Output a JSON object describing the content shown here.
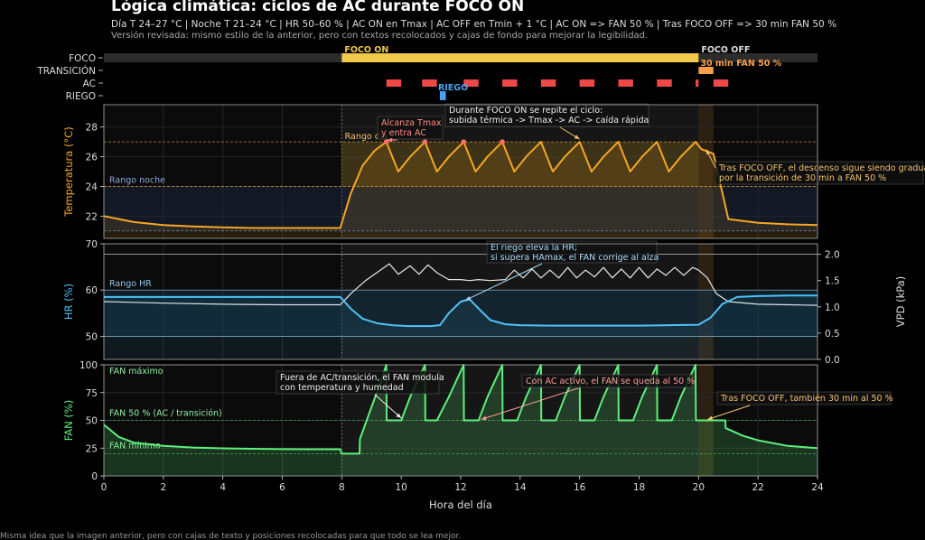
{
  "title": "Lógica climática: ciclos de AC durante FOCO ON",
  "subtitle": "Día T 24–27 °C | Noche T 21–24 °C | HR 50–60 % | AC ON en Tmax | AC OFF en Tmin + 1 °C | AC ON => FAN 50 % | Tras FOCO OFF => 30 min FAN 50 %",
  "subtitle2": "Versión revisada: mismo estilo de la anterior, pero con textos recolocados y cajas de fondo para mejorar la legibilidad.",
  "footer": "Misma idea que la imagen anterior, pero con cajas de texto y posiciones recolocadas para que todo se lea mejor.",
  "colors": {
    "temp": "#f5a623",
    "hr": "#4fc3f7",
    "vpd": "#e8e8e8",
    "fan": "#5cf07c",
    "foco": "#f0c84a",
    "transicion": "#f5a04a",
    "ac": "#f04848",
    "riego": "#4aa3f0",
    "tmax_dot": "#ff6f61"
  },
  "chart_data": [
    {
      "type": "timeline",
      "rows": [
        "FOCO",
        "TRANSICIÓN",
        "AC",
        "RIEGO"
      ],
      "labels": {
        "foco_on": "FOCO ON",
        "foco_off": "FOCO OFF",
        "transicion": "30 min FAN 50 %",
        "riego": "RIEGO"
      },
      "foco_on": [
        8,
        20
      ],
      "transicion": [
        20,
        20.5
      ],
      "ac": [
        [
          9.5,
          10.0
        ],
        [
          10.7,
          11.2
        ],
        [
          12.1,
          12.6
        ],
        [
          13.4,
          13.9
        ],
        [
          14.7,
          15.2
        ],
        [
          16.0,
          16.5
        ],
        [
          17.3,
          17.8
        ],
        [
          18.6,
          19.1
        ],
        [
          19.9,
          20.0
        ],
        [
          20.5,
          21.0
        ]
      ],
      "riego": [
        [
          11.3,
          11.5
        ]
      ]
    },
    {
      "type": "line",
      "ylabel": "Temperatura (°C)",
      "ylim": [
        20.5,
        29.5
      ],
      "yticks": [
        22,
        24,
        26,
        28
      ],
      "bands": [
        {
          "name": "Rango día",
          "range": [
            24,
            27
          ]
        },
        {
          "name": "Rango noche",
          "range": [
            21,
            24
          ]
        }
      ],
      "series": [
        {
          "x": [
            0,
            1,
            2,
            3,
            4,
            5,
            6,
            7,
            7.95,
            8.3,
            8.7,
            9.1,
            9.5,
            9.9,
            10.3,
            10.8,
            11.2,
            11.6,
            12.1,
            12.5,
            12.9,
            13.4,
            13.8,
            14.2,
            14.7,
            15.1,
            15.5,
            16.0,
            16.4,
            16.8,
            17.3,
            17.7,
            18.1,
            18.6,
            19.0,
            19.4,
            19.9,
            20.1,
            20.5,
            21.0,
            22,
            23,
            24
          ],
          "y": [
            22.0,
            21.6,
            21.4,
            21.3,
            21.25,
            21.2,
            21.2,
            21.2,
            21.2,
            23.5,
            25.4,
            26.4,
            27.0,
            25.0,
            26.0,
            27.0,
            25.0,
            26.0,
            27.0,
            25.0,
            26.0,
            27.0,
            25.0,
            26.0,
            27.0,
            25.0,
            26.0,
            27.0,
            25.0,
            26.0,
            27.0,
            25.0,
            26.0,
            27.0,
            25.0,
            26.0,
            27.0,
            26.5,
            26.2,
            21.8,
            21.55,
            21.45,
            21.4
          ]
        }
      ],
      "tmax_points": [
        [
          9.5,
          27.0
        ],
        [
          10.8,
          27.0
        ],
        [
          12.1,
          27.0
        ],
        [
          13.4,
          27.0
        ]
      ],
      "annotations": [
        "Alcanza Tmax\ny entra AC",
        "Durante FOCO ON se repite el ciclo:\nsubida térmica -> Tmax -> AC -> caída rápida",
        "Tras FOCO OFF, el descenso sigue siendo gradual\npor la transición de 30 min a FAN 50 %"
      ]
    },
    {
      "type": "line",
      "ylabel": "HR (%)",
      "y2label": "VPD (kPa)",
      "ylim": [
        45,
        70
      ],
      "yticks": [
        50,
        60,
        70
      ],
      "y2lim": [
        0,
        2.2
      ],
      "y2ticks": [
        0.0,
        0.5,
        1.0,
        1.5,
        2.0
      ],
      "bands": [
        {
          "name": "Rango HR",
          "range": [
            50,
            60
          ]
        }
      ],
      "series": [
        {
          "x": [
            0,
            2,
            4,
            6,
            7.95,
            8.3,
            8.7,
            9.2,
            9.7,
            10.2,
            10.7,
            11.0,
            11.3,
            11.6,
            12.0,
            12.3,
            12.6,
            13.0,
            13.5,
            14,
            15,
            16,
            17,
            18,
            19,
            20.0,
            20.4,
            20.8,
            21.3,
            22,
            23,
            24
          ],
          "y": [
            58.5,
            58.5,
            58.5,
            58.5,
            58.5,
            56.0,
            53.8,
            52.8,
            52.4,
            52.2,
            52.2,
            52.2,
            52.4,
            55.0,
            57.5,
            58.0,
            56.0,
            53.5,
            52.6,
            52.4,
            52.3,
            52.3,
            52.3,
            52.3,
            52.4,
            52.5,
            54.0,
            57.0,
            58.5,
            58.7,
            58.8,
            58.8
          ]
        },
        {
          "x": [
            0,
            2,
            4,
            6,
            7.95,
            8.3,
            8.8,
            9.3,
            9.6,
            9.9,
            10.3,
            10.6,
            10.9,
            11.2,
            11.6,
            12.0,
            12.3,
            12.6,
            13.0,
            13.5,
            13.8,
            14.1,
            14.4,
            14.7,
            15.0,
            15.3,
            15.6,
            15.9,
            16.2,
            16.5,
            16.8,
            17.1,
            17.4,
            17.7,
            18.0,
            18.3,
            18.6,
            18.9,
            19.2,
            19.5,
            19.8,
            20.0,
            20.3,
            20.6,
            21.0,
            22,
            23,
            24
          ],
          "y": [
            1.1,
            1.07,
            1.05,
            1.04,
            1.04,
            1.25,
            1.5,
            1.7,
            1.82,
            1.62,
            1.78,
            1.62,
            1.8,
            1.65,
            1.52,
            1.52,
            1.5,
            1.52,
            1.5,
            1.52,
            1.7,
            1.55,
            1.72,
            1.55,
            1.7,
            1.55,
            1.75,
            1.55,
            1.7,
            1.57,
            1.75,
            1.55,
            1.72,
            1.55,
            1.75,
            1.55,
            1.72,
            1.6,
            1.75,
            1.6,
            1.75,
            1.7,
            1.55,
            1.25,
            1.1,
            1.05,
            1.04,
            1.03
          ]
        }
      ],
      "annotations": [
        "El riego eleva la HR;\nsi supera HAmax, el FAN corrige al alza"
      ]
    },
    {
      "type": "line",
      "ylabel": "FAN (%)",
      "xlabel": "Hora del día",
      "xlim": [
        0,
        24
      ],
      "xticks": [
        0,
        2,
        4,
        6,
        8,
        10,
        12,
        14,
        16,
        18,
        20,
        22,
        24
      ],
      "ylim": [
        0,
        100
      ],
      "yticks": [
        0,
        25,
        50,
        75,
        100
      ],
      "reference_lines": [
        {
          "name": "FAN máximo",
          "value": 100
        },
        {
          "name": "FAN 50 % (AC / transición)",
          "value": 50
        },
        {
          "name": "FAN mínimo",
          "value": 20
        }
      ],
      "series": [
        {
          "x": [
            0,
            0.5,
            1,
            2,
            3,
            4,
            5,
            6,
            7,
            7.95,
            8.0,
            8.6,
            8.61,
            9.3,
            9.5,
            9.51,
            10.0,
            10.3,
            10.8,
            10.81,
            11.2,
            11.6,
            12.1,
            12.11,
            12.6,
            12.9,
            13.4,
            13.41,
            13.9,
            14.2,
            14.7,
            14.71,
            15.2,
            15.5,
            16.0,
            16.01,
            16.5,
            16.8,
            17.3,
            17.31,
            17.8,
            18.1,
            18.6,
            18.61,
            19.1,
            19.4,
            19.9,
            19.91,
            20.0,
            20.5,
            20.9,
            20.91,
            21.5,
            22,
            23,
            24
          ],
          "y": [
            46,
            35,
            30,
            27,
            25.5,
            24.8,
            24.4,
            24.1,
            24.0,
            24.0,
            20.0,
            20.0,
            33.0,
            84.0,
            100.0,
            50.0,
            50.0,
            71.0,
            100.0,
            50.0,
            50.0,
            71.0,
            100.0,
            50.0,
            50.0,
            71.0,
            100.0,
            50.0,
            50.0,
            71.0,
            100.0,
            50.0,
            50.0,
            71.0,
            100.0,
            50.0,
            50.0,
            71.0,
            100.0,
            50.0,
            50.0,
            71.0,
            100.0,
            50.0,
            50.0,
            71.0,
            100.0,
            50.0,
            50.0,
            50.0,
            50.0,
            43.0,
            36.0,
            32.0,
            27.0,
            25.0
          ]
        }
      ],
      "annotations": [
        "Fuera de AC/transición, el FAN modula\ncon temperatura y humedad",
        "Con AC activo, el FAN se queda al 50 %",
        "Tras FOCO OFF, también 30 min al 50 %"
      ]
    }
  ]
}
